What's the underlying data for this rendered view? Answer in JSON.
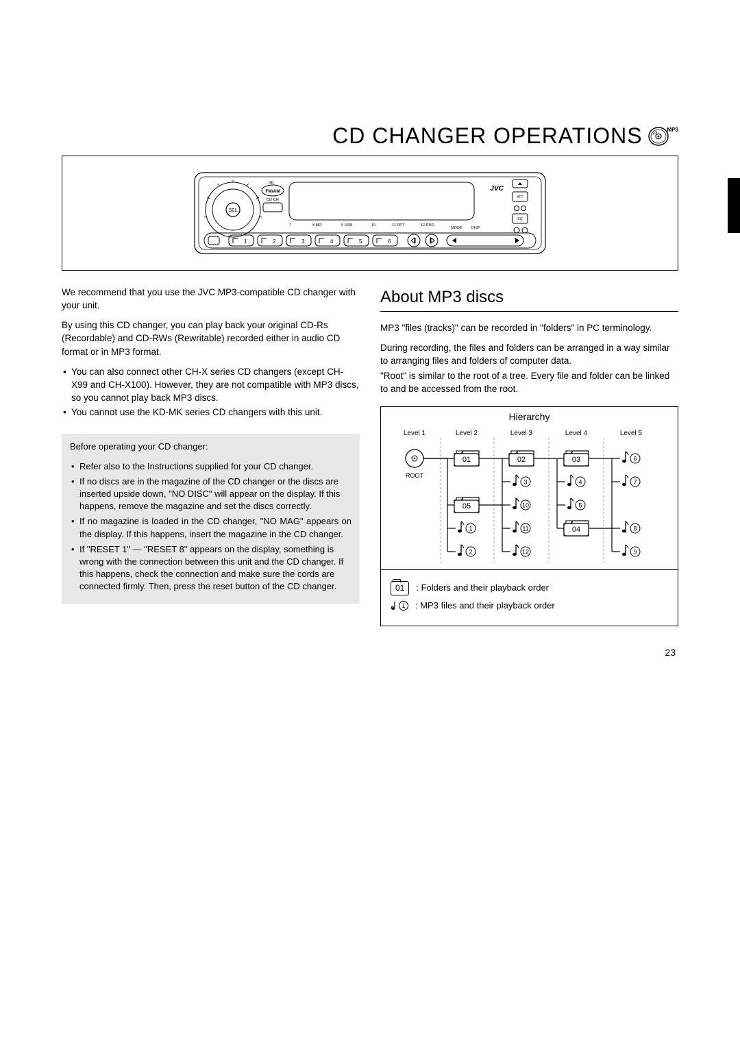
{
  "title": "CD CHANGER OPERATIONS",
  "title_badge": "MP3",
  "device": {
    "brand": "JVC",
    "buttons": {
      "fm_am": "FM/AM",
      "cd_ch": "CD-CH",
      "sel": "SEL",
      "sd": "SD",
      "att": "ATT",
      "mode": "MODE",
      "disp": "DISP",
      "eq": "EQ",
      "mo": "8 MO",
      "ssm": "9 SSM",
      "ten": "10",
      "rpt": "11 RPT",
      "rnd": "12 RND",
      "preset_labels": [
        "1",
        "2",
        "3",
        "4",
        "5",
        "6"
      ]
    }
  },
  "left_column": {
    "intro": "We recommend that you use the JVC MP3-compatible CD changer with your unit.",
    "para2": "By using this CD changer, you can play back your original CD-Rs (Recordable) and CD-RWs (Rewritable) recorded either in audio CD format or in MP3 format.",
    "bullets": [
      "You can also connect other CH-X series CD changers (except CH-X99 and CH-X100). However, they are not compatible with MP3 discs, so you cannot play back MP3 discs.",
      "You cannot use the KD-MK series CD changers with this unit."
    ],
    "box_intro": "Before operating your CD changer:",
    "box_bullets": [
      "Refer also to the Instructions supplied for your CD changer.",
      "If no discs are in the magazine of the CD changer or the discs are inserted upside down, \"NO DISC\" will appear on the display. If this happens, remove the magazine and set the discs correctly.",
      "If no magazine is loaded in the CD changer, \"NO MAG\" appears on the display. If this happens, insert the magazine in the CD changer.",
      "If \"RESET 1\" — \"RESET 8\" appears on the display, something is wrong with the connection between this unit and the CD changer. If this happens, check the connection and make sure the cords are connected firmly. Then, press the reset button of the CD changer."
    ]
  },
  "right_column": {
    "heading": "About MP3 discs",
    "para1": "MP3 \"files (tracks)\" can be recorded in \"folders\" in PC terminology.",
    "para2": "During recording, the files and folders can be arranged in a way similar to arranging files and folders of computer data.",
    "para3": "\"Root\" is similar to the root of a tree. Every file and folder can be linked to and be accessed from the root.",
    "hierarchy": {
      "title": "Hierarchy",
      "levels": [
        "Level 1",
        "Level 2",
        "Level 3",
        "Level 4",
        "Level 5"
      ],
      "root_label": "ROOT",
      "folders": [
        {
          "id": "01",
          "lvl": 2,
          "row": 0
        },
        {
          "id": "02",
          "lvl": 3,
          "row": 0
        },
        {
          "id": "03",
          "lvl": 4,
          "row": 0
        },
        {
          "id": "05",
          "lvl": 2,
          "row": 2
        },
        {
          "id": "04",
          "lvl": 4,
          "row": 3
        }
      ],
      "files": [
        {
          "n": 6,
          "lvl": 5,
          "row": 0
        },
        {
          "n": 3,
          "lvl": 3,
          "row": 1
        },
        {
          "n": 4,
          "lvl": 4,
          "row": 1
        },
        {
          "n": 7,
          "lvl": 5,
          "row": 1
        },
        {
          "n": 10,
          "lvl": 3,
          "row": 2
        },
        {
          "n": 5,
          "lvl": 4,
          "row": 2
        },
        {
          "n": 1,
          "lvl": 2,
          "row": 3
        },
        {
          "n": 11,
          "lvl": 3,
          "row": 3
        },
        {
          "n": 8,
          "lvl": 5,
          "row": 3
        },
        {
          "n": 2,
          "lvl": 2,
          "row": 4
        },
        {
          "n": 12,
          "lvl": 3,
          "row": 4
        },
        {
          "n": 9,
          "lvl": 5,
          "row": 4
        }
      ],
      "legend_folder_num": "01",
      "legend_folder": ": Folders and their playback order",
      "legend_file_num": "1",
      "legend_file": ": MP3 files and their playback order"
    }
  },
  "page_number": "23",
  "colors": {
    "text": "#000000",
    "background": "#ffffff",
    "box_bg": "#e8e8e8",
    "line": "#000000",
    "dash": "#777777"
  }
}
